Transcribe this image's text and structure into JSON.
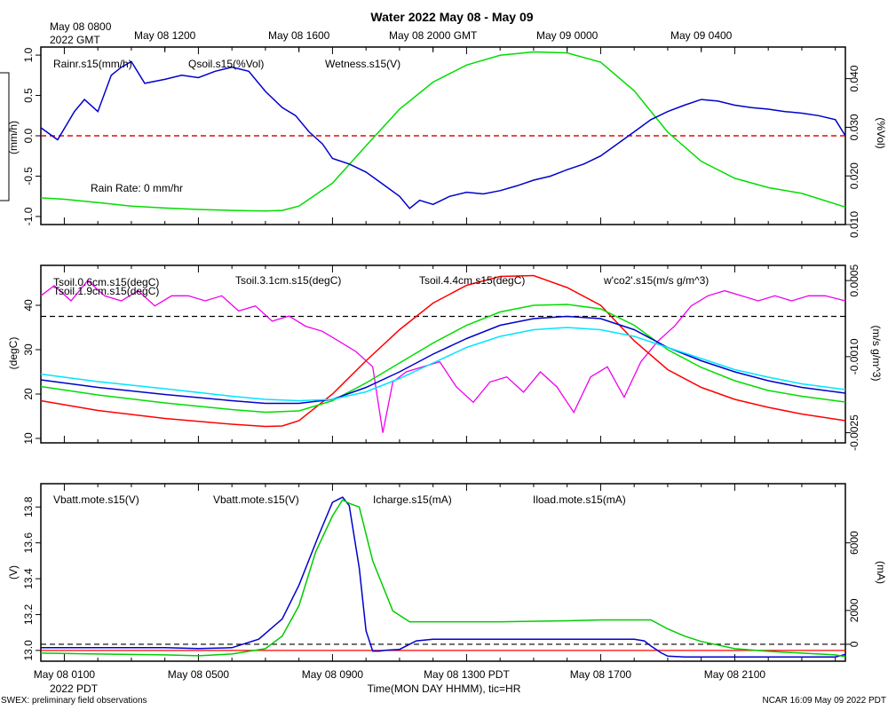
{
  "title": "Water 2022 May 08 - May 09",
  "top_axis": {
    "start_label_line1": "May 08 0800",
    "start_label_line2": "2022 GMT",
    "ticks": [
      {
        "h": 4,
        "label": "May 08 1200"
      },
      {
        "h": 8,
        "label": "May 08 1600"
      },
      {
        "h": 12,
        "label": "May 08 2000 GMT"
      },
      {
        "h": 16,
        "label": "May 09 0000"
      },
      {
        "h": 20,
        "label": "May 09 0400"
      }
    ]
  },
  "bottom_axis": {
    "ticks": [
      {
        "h": 1,
        "label": "May 08 0100"
      },
      {
        "h": 5,
        "label": "May 08 0500"
      },
      {
        "h": 9,
        "label": "May 08 0900"
      },
      {
        "h": 13,
        "label": "May 08 1300 PDT"
      },
      {
        "h": 17,
        "label": "May 08 1700"
      },
      {
        "h": 21,
        "label": "May 08 2100"
      }
    ],
    "start_label": "2022 PDT",
    "xlabel": "Time(MON DAY HHMM), tic=HR"
  },
  "footer": {
    "left": "SWEX: preliminary field observations",
    "right": "NCAR 16:09 May 09 2022 PDT"
  },
  "chart_data": [
    {
      "type": "line",
      "panel": "water",
      "x_unit": "hours since 2022-05-08 00:00 PDT",
      "xlim": [
        0.3,
        24.3
      ],
      "left_axis": {
        "label": "(mm/h)",
        "ylim": [
          -1.1,
          1.1
        ],
        "ticks": [
          -1.0,
          -0.5,
          0.0,
          0.5,
          1.0
        ],
        "tick_labels": [
          "-1.0",
          "-0.5",
          "0.0",
          "0.5",
          "1.0"
        ]
      },
      "right_axis": {
        "label": "(%Vol)",
        "ylim": [
          0.01,
          0.0465
        ],
        "ticks": [
          0.01,
          0.02,
          0.03,
          0.04
        ],
        "tick_labels": [
          "0.010",
          "0.020",
          "0.030",
          "0.040"
        ]
      },
      "series": [
        {
          "name": "Rainr.s15(mm/h)",
          "color": "#ff0000",
          "axis": "left",
          "x": [
            0.3,
            24.3
          ],
          "y": [
            0.0,
            0.0
          ]
        },
        {
          "name": "Qsoil.s15(%Vol)",
          "color": "#00dd00",
          "axis": "right",
          "x": [
            0.3,
            1,
            2,
            3,
            4,
            5,
            6,
            7,
            7.5,
            8,
            9,
            10,
            11,
            12,
            13,
            14,
            15,
            16,
            17,
            18,
            19,
            20,
            21,
            22,
            23,
            24.3
          ],
          "y": [
            0.0155,
            0.0152,
            0.0145,
            0.0138,
            0.0134,
            0.0131,
            0.0129,
            0.0128,
            0.0129,
            0.0138,
            0.0185,
            0.0262,
            0.0337,
            0.0393,
            0.0428,
            0.0448,
            0.0455,
            0.0453,
            0.0434,
            0.0375,
            0.029,
            0.023,
            0.0195,
            0.0176,
            0.0164,
            0.0136
          ]
        },
        {
          "name": "Wetness.s15(V)",
          "color": "#0000cc",
          "axis": "left",
          "x": [
            0.3,
            0.8,
            1.3,
            1.6,
            2.0,
            2.4,
            2.7,
            3.0,
            3.4,
            4.0,
            4.5,
            5.0,
            5.5,
            6.0,
            6.5,
            7.0,
            7.5,
            7.9,
            8.3,
            8.7,
            9.0,
            9.5,
            10.0,
            10.5,
            11.0,
            11.3,
            11.6,
            12.0,
            12.5,
            13.0,
            13.5,
            14.0,
            14.5,
            15.0,
            15.5,
            16.0,
            16.5,
            17.0,
            17.5,
            18.0,
            18.5,
            19.0,
            19.5,
            20.0,
            20.5,
            21.0,
            21.5,
            22.0,
            22.5,
            23.0,
            23.5,
            24.0,
            24.3
          ],
          "y": [
            0.1,
            -0.05,
            0.3,
            0.45,
            0.3,
            0.75,
            0.85,
            0.92,
            0.65,
            0.7,
            0.75,
            0.72,
            0.8,
            0.85,
            0.8,
            0.55,
            0.35,
            0.25,
            0.05,
            -0.1,
            -0.28,
            -0.35,
            -0.45,
            -0.6,
            -0.75,
            -0.9,
            -0.8,
            -0.85,
            -0.75,
            -0.7,
            -0.72,
            -0.68,
            -0.62,
            -0.55,
            -0.5,
            -0.42,
            -0.35,
            -0.25,
            -0.1,
            0.05,
            0.2,
            0.3,
            0.38,
            0.45,
            0.43,
            0.38,
            0.35,
            0.33,
            0.3,
            0.28,
            0.25,
            0.2,
            0.0
          ]
        }
      ],
      "reference_lines": [
        {
          "axis": "left",
          "y": 0.0,
          "style": "dashed",
          "color": "#000000"
        }
      ],
      "annotations": [
        {
          "text": "Rain Rate: 0 mm/hr",
          "color": "#ff0000"
        }
      ]
    },
    {
      "type": "line",
      "panel": "soil-temperature",
      "x_unit": "hours since 2022-05-08 00:00 PDT",
      "xlim": [
        0.3,
        24.3
      ],
      "left_axis": {
        "label": "(degC)",
        "ylim": [
          9,
          49
        ],
        "ticks": [
          10,
          20,
          30,
          40
        ],
        "tick_labels": [
          "10",
          "20",
          "30",
          "40"
        ]
      },
      "right_axis": {
        "label": "(m/s g/m^3)",
        "ylim": [
          -0.0027,
          0.0008
        ],
        "ticks": [
          -0.0025,
          -0.001,
          0.0005
        ],
        "tick_labels": [
          "-0.0025",
          "-0.0010",
          "0.0005"
        ]
      },
      "series": [
        {
          "name": "Tsoil.0.6cm.s15(degC)",
          "color": "#ff0000",
          "axis": "left",
          "x": [
            0.3,
            2,
            4,
            6,
            7,
            7.5,
            8,
            9,
            10,
            11,
            12,
            13,
            14,
            15,
            16,
            17,
            18,
            19,
            20,
            21,
            22,
            23,
            24.3
          ],
          "y": [
            18.5,
            16.3,
            14.5,
            13.2,
            12.7,
            12.8,
            14.0,
            20.0,
            27.5,
            34.5,
            40.5,
            44.5,
            46.5,
            46.7,
            44.0,
            40.0,
            32.0,
            25.5,
            21.5,
            18.8,
            17.0,
            15.5,
            14.0
          ]
        },
        {
          "name": "Tsoil.1.9cm.s15(degC)",
          "color": "#00dd00",
          "axis": "left",
          "x": [
            0.3,
            2,
            4,
            6,
            7,
            8,
            9,
            10,
            11,
            12,
            13,
            14,
            15,
            16,
            17,
            18,
            19,
            20,
            21,
            22,
            23,
            24.3
          ],
          "y": [
            21.7,
            19.8,
            18.0,
            16.5,
            15.9,
            16.2,
            18.5,
            22.5,
            27.0,
            31.5,
            35.5,
            38.5,
            40.0,
            40.2,
            39.2,
            35.5,
            30.0,
            26.0,
            23.0,
            20.8,
            19.5,
            18.2
          ]
        },
        {
          "name": "Tsoil.3.1cm.s15(degC)",
          "color": "#0000cc",
          "axis": "left",
          "x": [
            0.3,
            2,
            4,
            6,
            7,
            8,
            9,
            10,
            11,
            12,
            13,
            14,
            15,
            16,
            17,
            18,
            19,
            20,
            21,
            22,
            23,
            24.3
          ],
          "y": [
            23.2,
            21.5,
            19.9,
            18.5,
            17.9,
            17.9,
            18.8,
            21.5,
            25.0,
            29.0,
            32.5,
            35.5,
            37.0,
            37.5,
            37.0,
            34.5,
            30.5,
            27.5,
            25.0,
            23.0,
            21.5,
            20.2
          ]
        },
        {
          "name": "Tsoil.4.4cm.s15(degC)",
          "color": "#00e5ff",
          "axis": "left",
          "x": [
            0.3,
            2,
            4,
            6,
            7,
            8,
            9,
            10,
            11,
            12,
            13,
            14,
            15,
            16,
            17,
            18,
            19,
            20,
            21,
            22,
            23,
            24.3
          ],
          "y": [
            24.5,
            22.8,
            21.2,
            19.5,
            18.8,
            18.5,
            18.8,
            20.5,
            23.5,
            27.0,
            30.5,
            33.0,
            34.5,
            35.0,
            34.5,
            33.0,
            30.5,
            28.0,
            25.5,
            23.8,
            22.3,
            21.0
          ]
        },
        {
          "name": "w'co2'.s15(m/s g/m^3)",
          "color": "#ee00ee",
          "axis": "right",
          "x": [
            0.3,
            0.7,
            1.2,
            1.7,
            2.2,
            2.7,
            3.2,
            3.7,
            4.2,
            4.7,
            5.2,
            5.7,
            6.2,
            6.7,
            7.2,
            7.7,
            8.2,
            8.7,
            9.2,
            9.7,
            10.2,
            10.5,
            10.8,
            11.2,
            11.7,
            12.2,
            12.7,
            13.2,
            13.7,
            14.2,
            14.7,
            15.2,
            15.7,
            16.2,
            16.7,
            17.2,
            17.7,
            18.2,
            18.7,
            19.2,
            19.7,
            20.2,
            20.7,
            21.2,
            21.7,
            22.2,
            22.7,
            23.2,
            23.7,
            24.3
          ],
          "y": [
            0.0002,
            0.0004,
            0.0001,
            0.0005,
            0.0002,
            0.0001,
            0.0003,
            0.0,
            0.0002,
            0.0002,
            0.0001,
            0.0002,
            -0.0001,
            0.0,
            -0.0003,
            -0.0002,
            -0.0004,
            -0.0005,
            -0.0007,
            -0.0009,
            -0.0012,
            -0.0025,
            -0.0015,
            -0.0013,
            -0.0012,
            -0.0011,
            -0.0016,
            -0.0019,
            -0.0015,
            -0.0014,
            -0.0017,
            -0.0013,
            -0.0016,
            -0.0021,
            -0.0014,
            -0.0012,
            -0.0018,
            -0.0011,
            -0.0007,
            -0.0004,
            0.0,
            0.0002,
            0.0003,
            0.0002,
            0.0001,
            0.0002,
            0.0001,
            0.0002,
            0.0002,
            0.0001
          ]
        }
      ],
      "reference_lines": [
        {
          "axis": "left",
          "y": 37.5,
          "style": "dashed",
          "color": "#000000"
        }
      ]
    },
    {
      "type": "line",
      "panel": "battery-power",
      "x_unit": "hours since 2022-05-08 00:00 PDT",
      "xlim": [
        0.3,
        24.3
      ],
      "left_axis": {
        "label": "(V)",
        "ylim": [
          12.94,
          13.93
        ],
        "ticks": [
          13.0,
          13.2,
          13.4,
          13.6,
          13.8
        ],
        "tick_labels": [
          "13.0",
          "13.2",
          "13.4",
          "13.6",
          "13.8"
        ]
      },
      "right_axis": {
        "label": "(mA)",
        "ylim": [
          -1000,
          9500
        ],
        "ticks": [
          0,
          2000,
          6000
        ],
        "tick_labels": [
          "0",
          "2000",
          "6000"
        ]
      },
      "series": [
        {
          "name": "Vbatt.mote.s15(V)",
          "color": "#ff0000",
          "axis": "left",
          "x": [
            0.3,
            24.3
          ],
          "y": [
            13.0,
            13.0
          ]
        },
        {
          "name": "Vbatt.mote.s15(V)",
          "color": "#00cc00",
          "axis": "left",
          "x": [
            0.3,
            2,
            4,
            5,
            6,
            7,
            7.5,
            8,
            8.5,
            9,
            9.3,
            9.5,
            9.8,
            10.2,
            10.8,
            11.3,
            12,
            14,
            16,
            17,
            18,
            18.5,
            19,
            19.5,
            20,
            20.5,
            21,
            22,
            23,
            24,
            24.3
          ],
          "y": [
            12.985,
            12.98,
            12.975,
            12.97,
            12.98,
            13.01,
            13.08,
            13.25,
            13.55,
            13.75,
            13.84,
            13.82,
            13.8,
            13.5,
            13.22,
            13.16,
            13.16,
            13.16,
            13.165,
            13.17,
            13.17,
            13.17,
            13.12,
            13.08,
            13.05,
            13.03,
            13.01,
            12.995,
            12.985,
            12.975,
            12.965
          ]
        },
        {
          "name": "Icharge.s15(mA)",
          "color": "#0000cc",
          "axis": "right",
          "x": [
            0.3,
            2,
            4,
            5,
            6,
            6.8,
            7.5,
            8,
            8.6,
            9.0,
            9.3,
            9.5,
            9.8,
            10.0,
            10.2,
            10.4,
            10.6,
            11,
            11.5,
            12,
            14,
            16,
            18,
            18.3,
            18.5,
            18.8,
            19,
            19.5,
            20,
            22,
            24,
            24.3
          ],
          "y": [
            -200,
            -200,
            -200,
            -250,
            -200,
            300,
            1500,
            3500,
            6500,
            8400,
            8700,
            8200,
            4500,
            800,
            -400,
            -400,
            -350,
            -300,
            200,
            300,
            300,
            300,
            300,
            200,
            -100,
            -500,
            -700,
            -750,
            -750,
            -750,
            -750,
            -600
          ]
        }
      ],
      "reference_lines": [
        {
          "axis": "right",
          "y": 0,
          "style": "dashed",
          "color": "#000000"
        },
        {
          "axis": "left",
          "y": 13.0,
          "style": "solid",
          "color": "#ff0000"
        }
      ],
      "legend_extra": [
        {
          "name": "Iload.mote.s15(mA)",
          "color": "#00e5ff"
        }
      ]
    }
  ]
}
